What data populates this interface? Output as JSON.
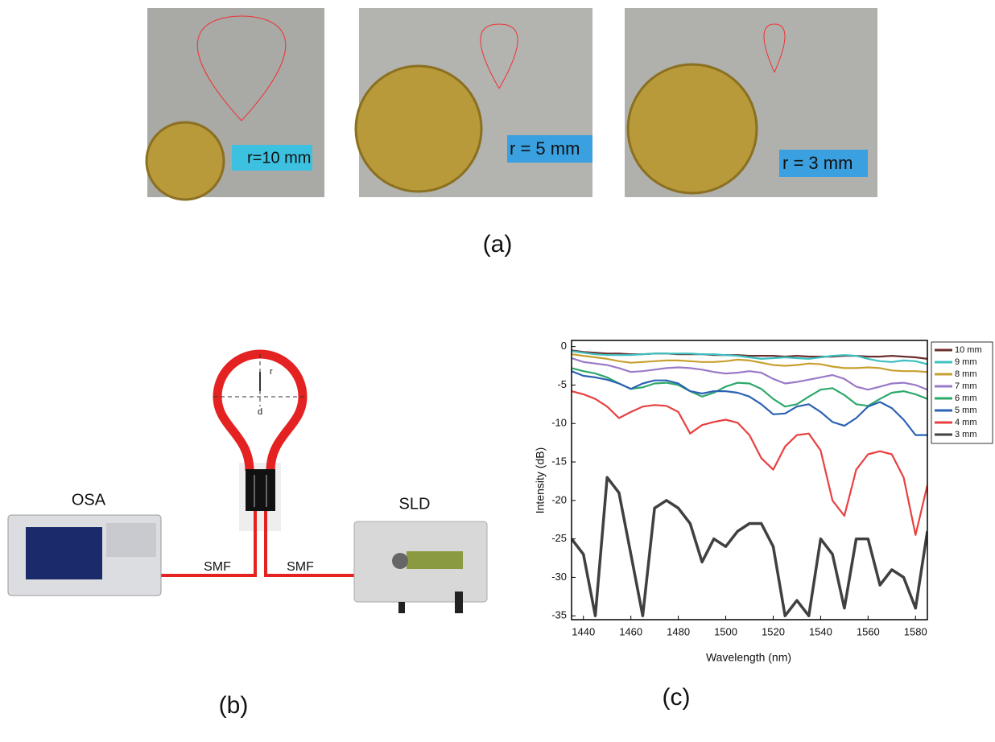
{
  "panel_a": {
    "photos": [
      {
        "label": "r=10 mm"
      },
      {
        "label": "r = 5 mm"
      },
      {
        "label": "r = 3 mm"
      }
    ],
    "caption": "(a)"
  },
  "panel_b": {
    "radius": "r",
    "diameter": "d",
    "osa": "OSA",
    "sld": "SLD",
    "fiber_left": "SMF",
    "fiber_right": "SMF",
    "caption": "(b)"
  },
  "panel_c": {
    "caption": "(c)"
  },
  "chart_data": {
    "type": "line",
    "x_label": "Wavelength (nm)",
    "y_label": "Intensity (dB)",
    "x": [
      1435,
      1440,
      1445,
      1450,
      1455,
      1460,
      1465,
      1470,
      1475,
      1480,
      1485,
      1490,
      1495,
      1500,
      1505,
      1510,
      1515,
      1520,
      1525,
      1530,
      1535,
      1540,
      1545,
      1550,
      1555,
      1560,
      1565,
      1570,
      1575,
      1580,
      1585
    ],
    "xlim": [
      1435,
      1585
    ],
    "xticks": [
      1440,
      1460,
      1480,
      1500,
      1520,
      1540,
      1560,
      1580
    ],
    "ylim": [
      -35.5,
      0.8
    ],
    "yticks": [
      0,
      -5,
      -10,
      -15,
      -20,
      -25,
      -30,
      -35
    ],
    "grid": false,
    "legend": "outside-right",
    "series": [
      {
        "name": "10 mm",
        "color": "#6b2f2f",
        "values": [
          -0.5,
          -0.7,
          -0.8,
          -0.9,
          -0.9,
          -1.0,
          -1.0,
          -0.9,
          -0.9,
          -1.0,
          -1.0,
          -1.0,
          -1.1,
          -1.1,
          -1.1,
          -1.2,
          -1.2,
          -1.2,
          -1.3,
          -1.2,
          -1.3,
          -1.3,
          -1.3,
          -1.2,
          -1.2,
          -1.3,
          -1.3,
          -1.2,
          -1.3,
          -1.4,
          -1.6
        ]
      },
      {
        "name": "9 mm",
        "color": "#3cc0c0",
        "values": [
          -0.6,
          -0.8,
          -1.0,
          -1.1,
          -1.1,
          -1.1,
          -1.0,
          -0.9,
          -0.9,
          -0.9,
          -0.9,
          -1.0,
          -1.0,
          -1.1,
          -1.2,
          -1.4,
          -1.6,
          -1.5,
          -1.4,
          -1.5,
          -1.6,
          -1.4,
          -1.2,
          -1.1,
          -1.2,
          -1.6,
          -1.9,
          -2.0,
          -1.8,
          -1.9,
          -2.3
        ]
      },
      {
        "name": "8 mm",
        "color": "#c8a030",
        "values": [
          -1.0,
          -1.2,
          -1.4,
          -1.6,
          -1.9,
          -2.1,
          -2.0,
          -1.9,
          -1.8,
          -1.8,
          -1.9,
          -2.0,
          -2.0,
          -1.9,
          -1.7,
          -1.8,
          -2.1,
          -2.4,
          -2.5,
          -2.4,
          -2.2,
          -2.3,
          -2.6,
          -2.8,
          -2.8,
          -2.7,
          -2.8,
          -3.1,
          -3.2,
          -3.2,
          -3.3
        ]
      },
      {
        "name": "7 mm",
        "color": "#9a7ac8",
        "values": [
          -1.5,
          -2.0,
          -2.2,
          -2.4,
          -2.8,
          -3.3,
          -3.2,
          -3.0,
          -2.8,
          -2.7,
          -2.8,
          -3.0,
          -3.3,
          -3.5,
          -3.4,
          -3.2,
          -3.4,
          -4.2,
          -4.8,
          -4.6,
          -4.3,
          -4.0,
          -3.7,
          -4.2,
          -5.2,
          -5.6,
          -5.2,
          -4.8,
          -4.7,
          -5.0,
          -5.6
        ]
      },
      {
        "name": "6 mm",
        "color": "#2ea86a",
        "values": [
          -2.8,
          -3.2,
          -3.5,
          -4.0,
          -4.8,
          -5.5,
          -5.3,
          -4.8,
          -4.7,
          -5.0,
          -5.8,
          -6.5,
          -6.0,
          -5.2,
          -4.7,
          -4.8,
          -5.5,
          -6.8,
          -7.8,
          -7.5,
          -6.5,
          -5.6,
          -5.4,
          -6.3,
          -7.5,
          -7.7,
          -6.8,
          -6.0,
          -5.8,
          -6.2,
          -6.8
        ]
      },
      {
        "name": "5 mm",
        "color": "#2c62b4",
        "values": [
          -3.2,
          -3.8,
          -4.0,
          -4.3,
          -4.8,
          -5.5,
          -4.8,
          -4.4,
          -4.4,
          -4.8,
          -5.8,
          -6.1,
          -5.8,
          -5.8,
          -6.0,
          -6.5,
          -7.5,
          -8.8,
          -8.7,
          -7.8,
          -7.5,
          -8.5,
          -9.8,
          -10.3,
          -9.3,
          -7.8,
          -7.2,
          -8.0,
          -9.5,
          -11.5,
          -11.5
        ]
      },
      {
        "name": "4 mm",
        "color": "#e84040",
        "values": [
          -5.8,
          -6.2,
          -6.8,
          -7.8,
          -9.3,
          -8.5,
          -7.8,
          -7.6,
          -7.7,
          -8.5,
          -11.3,
          -10.2,
          -9.8,
          -9.5,
          -9.9,
          -11.5,
          -14.5,
          -16.0,
          -13.0,
          -11.5,
          -11.3,
          -13.5,
          -20,
          -22,
          -16,
          -14,
          -13.6,
          -14,
          -17,
          -24.5,
          -18
        ]
      },
      {
        "name": "3 mm",
        "color": "#404040",
        "values": [
          -25,
          -27,
          -35,
          -17,
          -19,
          -27,
          -35,
          -21,
          -20,
          -21,
          -23,
          -28,
          -25,
          -26,
          -24,
          -23,
          -23,
          -26,
          -35,
          -33,
          -35,
          -25,
          -27,
          -34,
          -25,
          -25,
          -31,
          -29,
          -30,
          -34,
          -24
        ]
      }
    ]
  }
}
